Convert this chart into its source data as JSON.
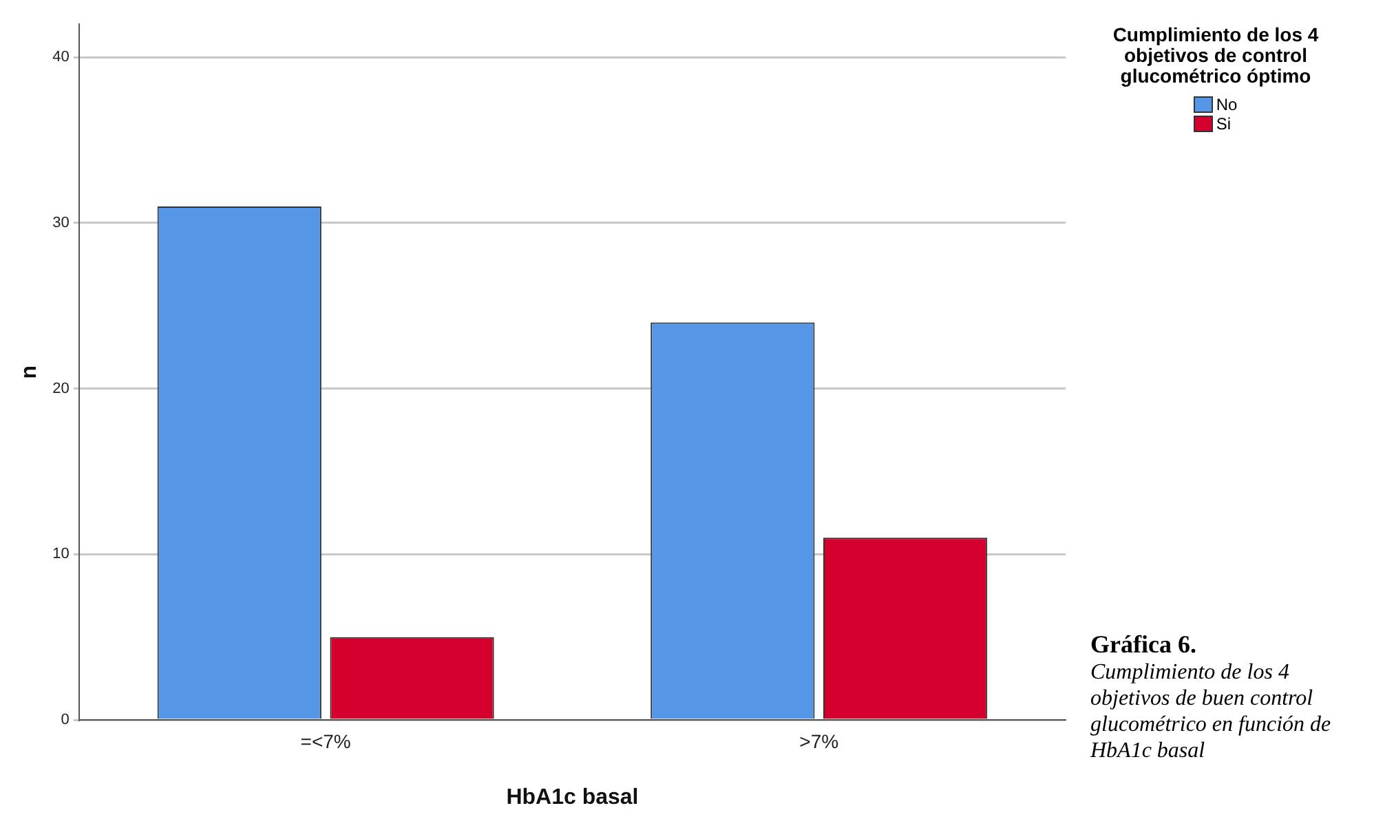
{
  "chart_data": {
    "type": "bar",
    "xlabel": "HbA1c basal",
    "ylabel": "n",
    "legend_title": "Cumplimiento de los 4 objetivos de control glucométrico óptimo",
    "categories": [
      "=<7%",
      ">7%"
    ],
    "series": [
      {
        "name": "No",
        "color": "#5596e6",
        "values": [
          31,
          24
        ]
      },
      {
        "name": "Si",
        "color": "#d5002e",
        "values": [
          5,
          11
        ]
      }
    ],
    "ylim": [
      0,
      42
    ],
    "yticks": [
      0,
      10,
      20,
      30,
      40
    ],
    "grid": "y",
    "legend": "top right",
    "annotations": [
      "Gráfica 6.",
      "Cumplimiento de los 4 objetivos de buen control glucométrico en función de HbA1c basal"
    ]
  }
}
